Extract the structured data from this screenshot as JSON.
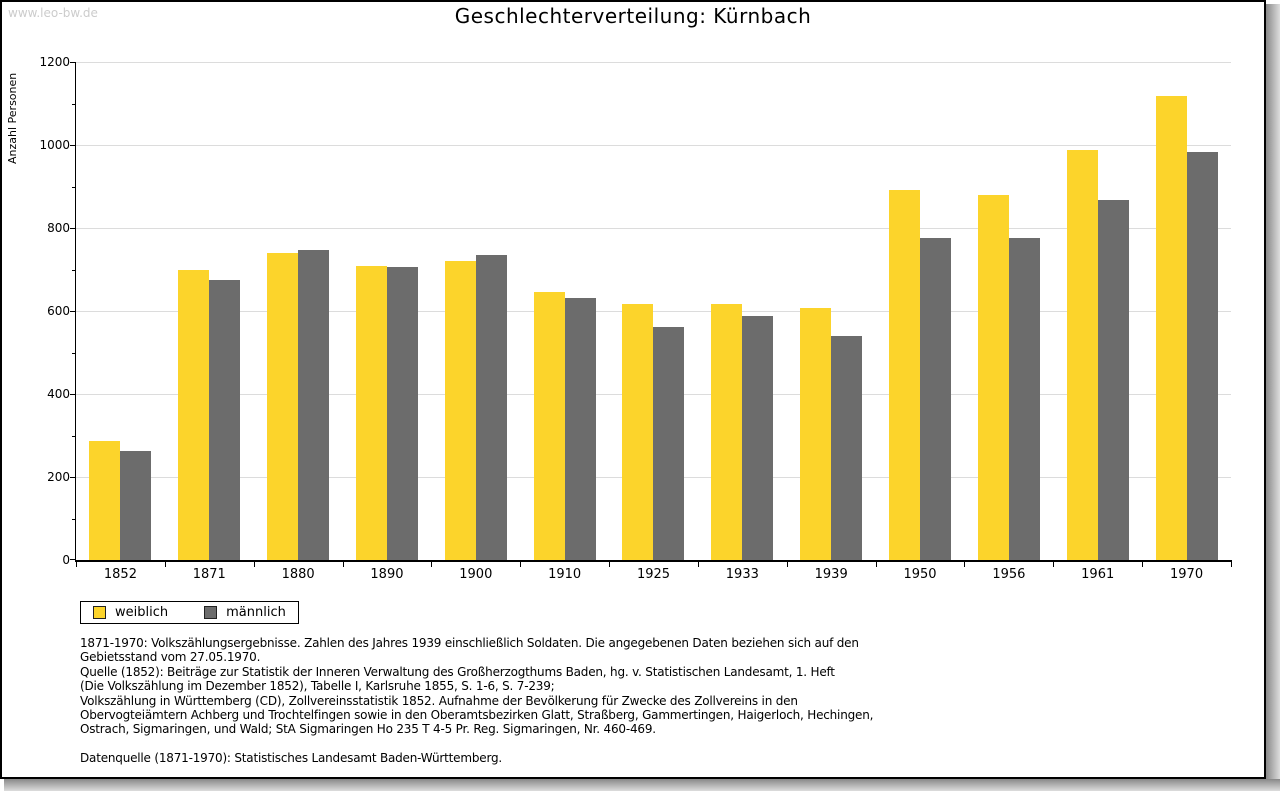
{
  "watermark": "www.leo-bw.de",
  "title": "Geschlechterverteilung: Kürnbach",
  "y_axis_title": "Anzahl Personen",
  "colors": {
    "weiblich": "#FCD42B",
    "maennlich": "#6C6C6C",
    "gridline": "#dcdcdc",
    "watermark": "#cccccc"
  },
  "chart_data": {
    "type": "bar",
    "title": "Geschlechterverteilung: Kürnbach",
    "xlabel": "",
    "ylabel": "Anzahl Personen",
    "ylim": [
      0,
      1200
    ],
    "ytick_step": 200,
    "yminor_step": 100,
    "grid": true,
    "legend_position": "bottom-left",
    "categories": [
      "1852",
      "1871",
      "1880",
      "1890",
      "1900",
      "1910",
      "1925",
      "1933",
      "1939",
      "1950",
      "1956",
      "1961",
      "1970"
    ],
    "series": [
      {
        "name": "weiblich",
        "color": "#FCD42B",
        "values": [
          286,
          698,
          741,
          708,
          720,
          646,
          616,
          617,
          607,
          892,
          880,
          988,
          1118
        ]
      },
      {
        "name": "männlich",
        "color": "#6C6C6C",
        "values": [
          262,
          675,
          746,
          706,
          735,
          631,
          562,
          589,
          540,
          776,
          776,
          867,
          983
        ]
      }
    ]
  },
  "footnotes": {
    "lines": [
      "1871-1970: Volkszählungsergebnisse. Zahlen des Jahres 1939 einschließlich Soldaten. Die angegebenen Daten beziehen sich auf den",
      "Gebietsstand vom 27.05.1970.",
      "Quelle (1852): Beiträge zur Statistik der Inneren Verwaltung des Großherzogthums Baden, hg. v. Statistischen Landesamt, 1. Heft",
      "(Die Volkszählung im Dezember 1852), Tabelle I, Karlsruhe 1855, S. 1-6, S. 7-239;",
      "Volkszählung in Württemberg (CD), Zollvereinsstatistik 1852. Aufnahme der Bevölkerung für Zwecke des Zollvereins in den",
      "Obervogteiämtern Achberg und Trochtelfingen sowie in den Oberamtsbezirken Glatt, Straßberg, Gammertingen, Haigerloch, Hechingen,",
      "Ostrach, Sigmaringen, und Wald; StA Sigmaringen Ho 235 T 4-5 Pr. Reg. Sigmaringen, Nr. 460-469."
    ],
    "datasource": "Datenquelle (1871-1970): Statistisches Landesamt Baden-Württemberg."
  }
}
